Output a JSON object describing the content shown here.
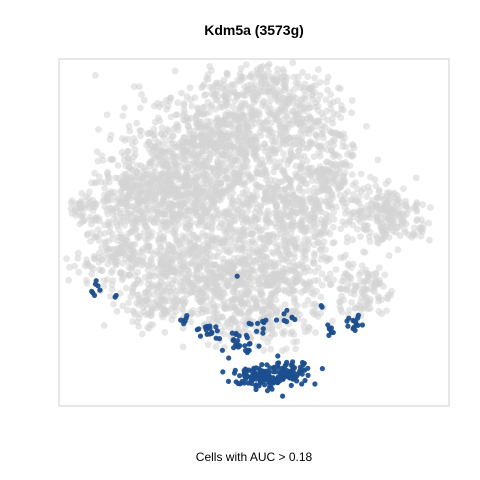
{
  "chart_data": {
    "type": "scatter",
    "title": "Kdm5a (3573g)",
    "caption": "Cells with AUC > 0.18",
    "xlabel": "",
    "ylabel": "",
    "axes_visible": false,
    "grid": false,
    "legend": "none",
    "series": [
      {
        "role": "background-cells",
        "color": "#d3d3d3",
        "opacity": 0.55,
        "description_regions": "embedding cloud of all cells"
      },
      {
        "role": "cells-above-threshold",
        "color": "#1c4f8f",
        "opacity": 0.95
      }
    ]
  }
}
